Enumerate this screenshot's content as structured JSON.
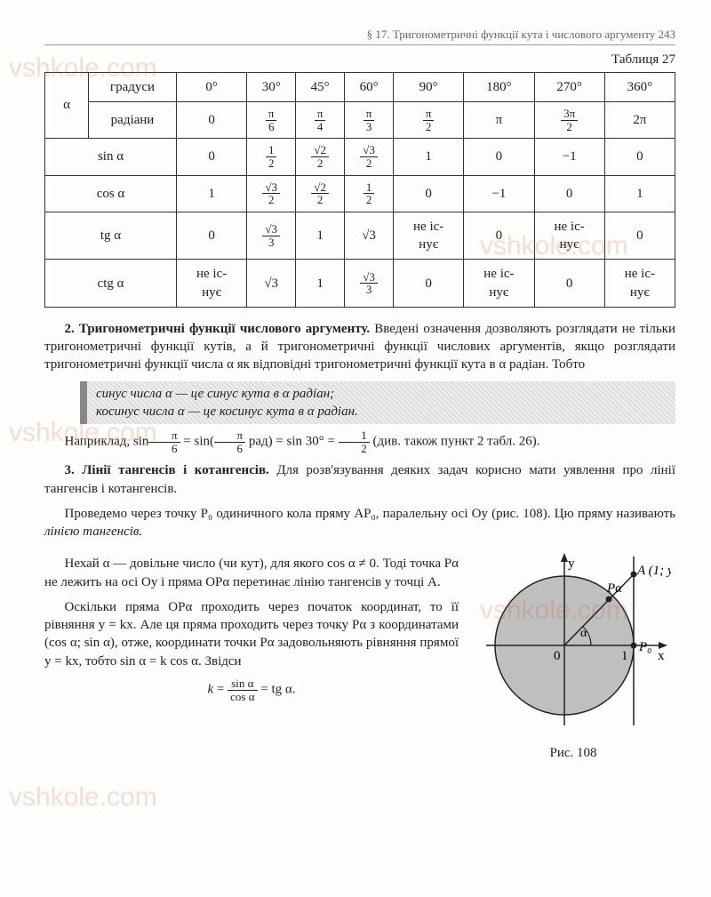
{
  "header": "§ 17. Тригонометричні функції кута і числового аргументу   243",
  "table_caption": "Таблиця 27",
  "alpha": "α",
  "rows": {
    "degrees_label": "градуси",
    "radians_label": "радіани",
    "sin_label": "sin α",
    "cos_label": "cos α",
    "tg_label": "tg α",
    "ctg_label": "ctg α"
  },
  "degrees": [
    "0°",
    "30°",
    "45°",
    "60°",
    "90°",
    "180°",
    "270°",
    "360°"
  ],
  "radians": [
    "0",
    "π/6",
    "π/4",
    "π/3",
    "π/2",
    "π",
    "3π/2",
    "2π"
  ],
  "sin": [
    "0",
    "1/2",
    "√2/2",
    "√3/2",
    "1",
    "0",
    "−1",
    "0"
  ],
  "cos": [
    "1",
    "√3/2",
    "√2/2",
    "1/2",
    "0",
    "−1",
    "0",
    "1"
  ],
  "tg": [
    "0",
    "√3/3",
    "1",
    "√3",
    "не іс-\nнує",
    "0",
    "не іс-\nнує",
    "0"
  ],
  "ctg": [
    "не іс-\nнує",
    "√3",
    "1",
    "√3/3",
    "0",
    "не іс-\nнує",
    "0",
    "не іс-\nнує"
  ],
  "sec2_title": "2.   Тригонометричні функції числового аргументу.",
  "sec2_body": " Введені означення дозволяють розглядати не тільки тригонометричні функції кутів, а й тригонометричні функції числових аргументів, якщо розглядати тригонометричні функції числа α як відповідні тригонометричні функції кута в α радіан. Тобто",
  "def1": "синус числа α — це синус кута в α радіан;",
  "def2": "косинус числа α — це косинус кута в α радіан.",
  "example_lead": "Наприклад,   ",
  "example_tail": "   (див.  також  пункт  2 табл. 26).",
  "sec3_title": "3.   Лінії тангенсів і котангенсів.",
  "sec3_p1": " Для розв'язування деяких задач корисно мати уявлення про лінії тангенсів і котангенсів.",
  "sec3_p2": "Проведемо через точку P₀ одиничного кола пряму AP₀, паралельну осі Oy (рис. 108). Цю пряму називають ",
  "sec3_p2_em": "лінією тангенсів.",
  "sec3_p3": "Нехай α — довільне число (чи кут), для якого cos α ≠ 0. Тоді точка Pα не лежить на осі Oy і пряма OPα перетинає лінію тангенсів у точці A.",
  "sec3_p4": "Оскільки пряма OPα проходить через початок координат, то її рівняння y = kx. Але ця пряма проходить через точку Pα з координатами (cos α; sin α), отже, координати точки Pα задовольняють рівняння прямої y = kx, тобто sin α = k cos α. Звідси",
  "final_eq": "k = sin α / cos α = tg α.",
  "fig_caption": "Рис. 108",
  "fig_labels": {
    "y": "y",
    "x": "x",
    "O": "0",
    "one": "1",
    "P0": "P₀",
    "Pa": "Pα",
    "A": "A (1; yA)",
    "alpha": "α"
  },
  "watermark": "vshkole.com"
}
